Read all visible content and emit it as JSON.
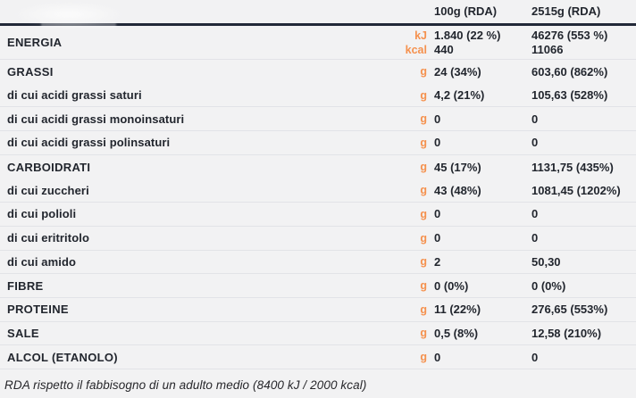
{
  "table": {
    "columns": [
      "100g (RDA)",
      "2515g (RDA)"
    ],
    "energy_row": {
      "label": "ENERGIA",
      "units": [
        "kJ",
        "kcal"
      ],
      "col1": [
        "1.840 (22 %)",
        "440"
      ],
      "col2": [
        "46276 (553 %)",
        "11066"
      ]
    },
    "rows": [
      {
        "label": "GRASSI",
        "unit": "g",
        "col1": "24 (34%)",
        "col2": "603,60 (862%)"
      },
      {
        "label": "di cui acidi grassi saturi",
        "unit": "g",
        "col1": "4,2 (21%)",
        "col2": "105,63 (528%)"
      },
      {
        "label": "di cui acidi grassi monoinsaturi",
        "unit": "g",
        "col1": "0",
        "col2": "0"
      },
      {
        "label": "di cui acidi grassi polinsaturi",
        "unit": "g",
        "col1": "0",
        "col2": "0"
      },
      {
        "label": "CARBOIDRATI",
        "unit": "g",
        "col1": "45 (17%)",
        "col2": "1131,75 (435%)"
      },
      {
        "label": "di cui zuccheri",
        "unit": "g",
        "col1": "43 (48%)",
        "col2": "1081,45 (1202%)"
      },
      {
        "label": "di cui polioli",
        "unit": "g",
        "col1": "0",
        "col2": "0"
      },
      {
        "label": "di cui eritritolo",
        "unit": "g",
        "col1": "0",
        "col2": "0"
      },
      {
        "label": "di cui amido",
        "unit": "g",
        "col1": "2",
        "col2": "50,30"
      },
      {
        "label": "FIBRE",
        "unit": "g",
        "col1": "0 (0%)",
        "col2": "0 (0%)"
      },
      {
        "label": "PROTEINE",
        "unit": "g",
        "col1": "11 (22%)",
        "col2": "276,65 (553%)"
      },
      {
        "label": "SALE",
        "unit": "g",
        "col1": "0,5 (8%)",
        "col2": "12,58 (210%)"
      },
      {
        "label": "ALCOL (ETANOLO)",
        "unit": "g",
        "col1": "0",
        "col2": "0"
      }
    ],
    "footnote": "RDA rispetto il fabbisogno di un adulto medio (8400 kJ / 2000 kcal)"
  },
  "colors": {
    "accent_orange": "#f5914e",
    "text_dark": "#22262e",
    "header_rule": "#222938",
    "divider": "#e2e3e7",
    "background": "#f2f2f3"
  }
}
